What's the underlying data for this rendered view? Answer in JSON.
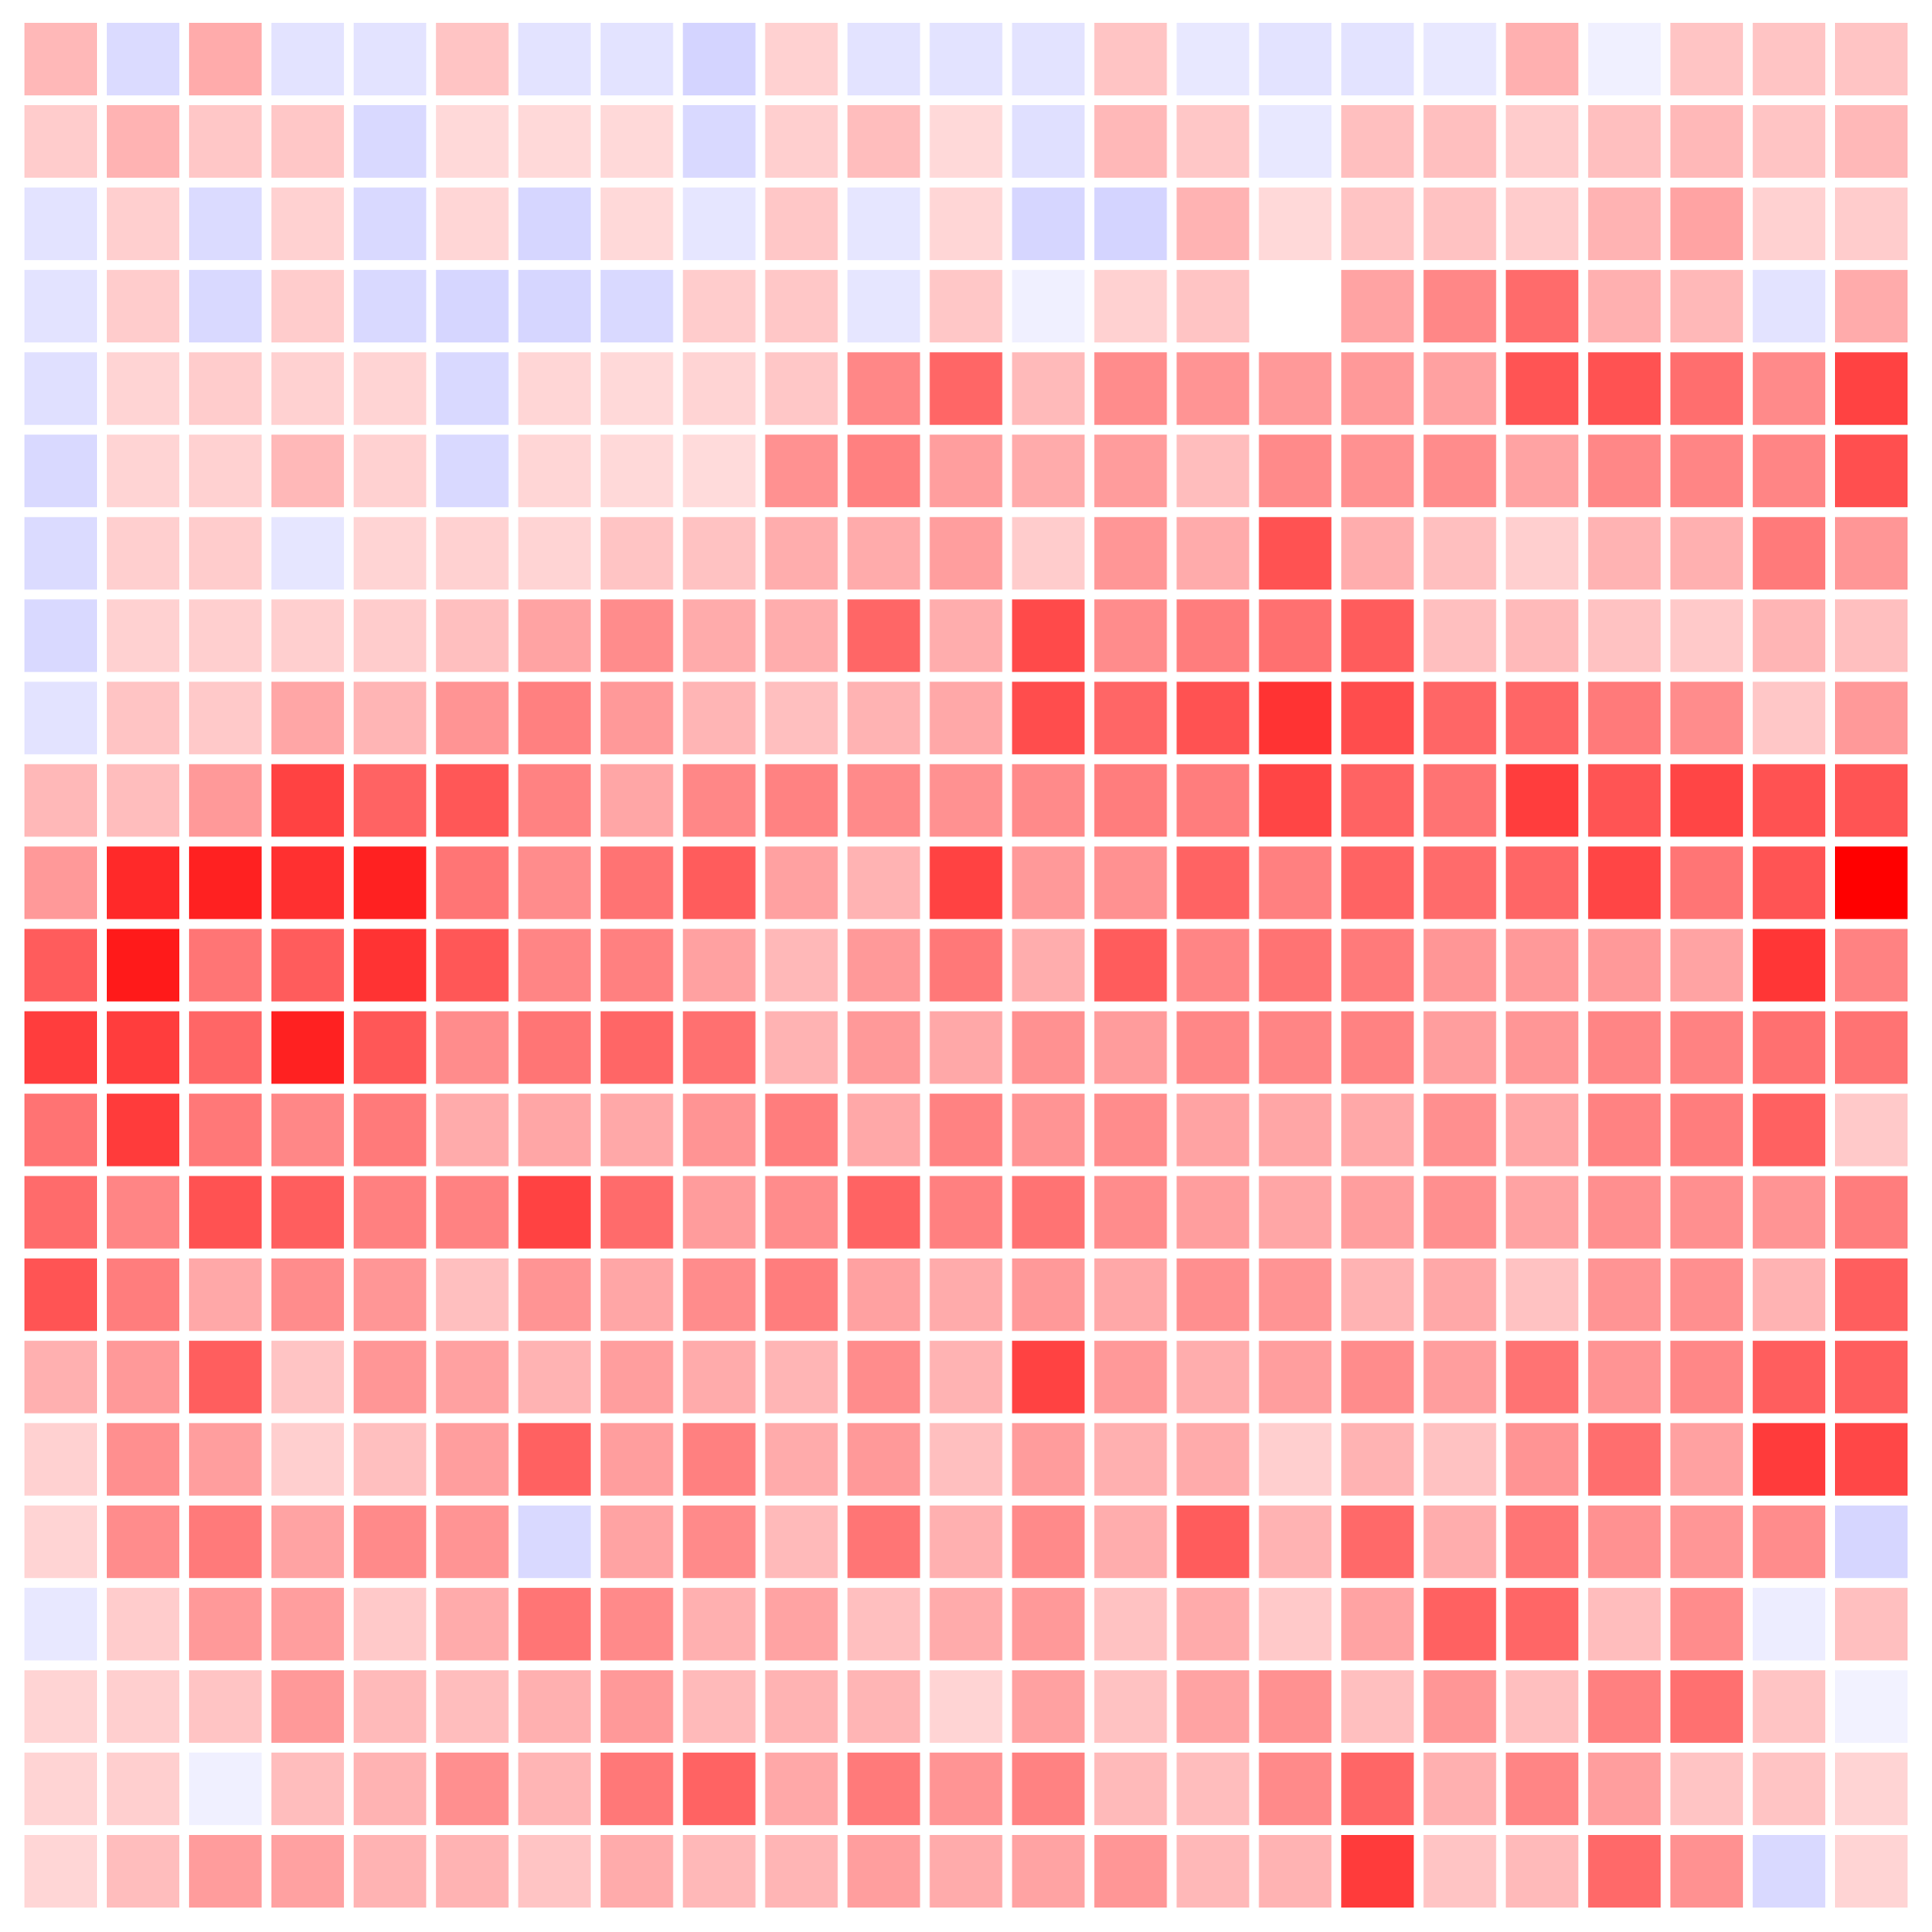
{
  "chart_data": {
    "type": "heatmap",
    "title": "",
    "xlabel": "",
    "ylabel": "",
    "grid": true,
    "legend": "none",
    "colors": {
      "negative": "#0000ff",
      "positive": "#ff0000",
      "neutral": "#ffffff",
      "background": "#ffffff"
    },
    "vmin": -1,
    "vmax": 1,
    "values": [
      [
        0.28,
        -0.14,
        0.33,
        -0.11,
        -0.11,
        0.23,
        -0.11,
        -0.11,
        -0.17,
        0.18,
        -0.11,
        -0.11,
        -0.11,
        0.23,
        -0.09,
        -0.11,
        -0.11,
        -0.09,
        0.31,
        -0.06,
        0.23,
        0.23,
        0.23
      ],
      [
        0.2,
        0.3,
        0.22,
        0.22,
        -0.15,
        0.15,
        0.15,
        0.15,
        -0.15,
        0.19,
        0.26,
        0.15,
        -0.12,
        0.28,
        0.22,
        -0.09,
        0.25,
        0.25,
        0.2,
        0.25,
        0.28,
        0.23,
        0.28
      ],
      [
        -0.11,
        0.19,
        -0.14,
        0.18,
        -0.15,
        0.16,
        -0.16,
        0.15,
        -0.1,
        0.22,
        -0.1,
        0.16,
        -0.16,
        -0.17,
        0.3,
        0.15,
        0.23,
        0.24,
        0.2,
        0.3,
        0.36,
        0.18,
        0.2
      ],
      [
        -0.11,
        0.2,
        -0.15,
        0.2,
        -0.15,
        -0.16,
        -0.16,
        -0.15,
        0.2,
        0.22,
        -0.1,
        0.22,
        -0.06,
        0.18,
        0.23,
        0.0,
        0.36,
        0.47,
        0.58,
        0.31,
        0.28,
        -0.11,
        0.33
      ],
      [
        -0.12,
        0.17,
        0.2,
        0.18,
        0.17,
        -0.15,
        0.16,
        0.15,
        0.17,
        0.22,
        0.47,
        0.6,
        0.27,
        0.45,
        0.42,
        0.4,
        0.4,
        0.37,
        0.67,
        0.68,
        0.57,
        0.46,
        0.74
      ],
      [
        -0.15,
        0.17,
        0.18,
        0.28,
        0.18,
        -0.15,
        0.16,
        0.15,
        0.14,
        0.43,
        0.5,
        0.38,
        0.33,
        0.39,
        0.26,
        0.46,
        0.43,
        0.45,
        0.36,
        0.47,
        0.48,
        0.48,
        0.69
      ],
      [
        -0.14,
        0.19,
        0.2,
        -0.1,
        0.17,
        0.18,
        0.17,
        0.23,
        0.24,
        0.32,
        0.33,
        0.38,
        0.2,
        0.41,
        0.33,
        0.68,
        0.32,
        0.25,
        0.19,
        0.3,
        0.31,
        0.52,
        0.41
      ],
      [
        -0.15,
        0.18,
        0.19,
        0.19,
        0.2,
        0.25,
        0.36,
        0.45,
        0.33,
        0.32,
        0.6,
        0.32,
        0.71,
        0.45,
        0.51,
        0.56,
        0.64,
        0.25,
        0.27,
        0.24,
        0.21,
        0.29,
        0.25
      ],
      [
        -0.11,
        0.23,
        0.21,
        0.35,
        0.29,
        0.42,
        0.5,
        0.4,
        0.29,
        0.25,
        0.3,
        0.34,
        0.7,
        0.6,
        0.68,
        0.8,
        0.7,
        0.6,
        0.6,
        0.52,
        0.45,
        0.22,
        0.4
      ],
      [
        0.28,
        0.26,
        0.4,
        0.74,
        0.61,
        0.66,
        0.49,
        0.35,
        0.47,
        0.49,
        0.46,
        0.43,
        0.46,
        0.51,
        0.51,
        0.73,
        0.61,
        0.55,
        0.76,
        0.67,
        0.73,
        0.68,
        0.67
      ],
      [
        0.4,
        0.84,
        0.87,
        0.81,
        0.87,
        0.54,
        0.45,
        0.55,
        0.64,
        0.37,
        0.3,
        0.74,
        0.4,
        0.43,
        0.61,
        0.5,
        0.61,
        0.58,
        0.6,
        0.73,
        0.54,
        0.67,
        1.0
      ],
      [
        0.64,
        0.9,
        0.54,
        0.64,
        0.8,
        0.66,
        0.48,
        0.5,
        0.37,
        0.28,
        0.4,
        0.53,
        0.32,
        0.64,
        0.48,
        0.55,
        0.52,
        0.41,
        0.4,
        0.4,
        0.36,
        0.79,
        0.49
      ],
      [
        0.76,
        0.76,
        0.6,
        0.87,
        0.66,
        0.45,
        0.54,
        0.6,
        0.56,
        0.3,
        0.4,
        0.34,
        0.43,
        0.39,
        0.47,
        0.48,
        0.49,
        0.38,
        0.41,
        0.48,
        0.49,
        0.56,
        0.55
      ],
      [
        0.55,
        0.77,
        0.53,
        0.47,
        0.52,
        0.33,
        0.35,
        0.34,
        0.42,
        0.51,
        0.34,
        0.49,
        0.42,
        0.45,
        0.36,
        0.35,
        0.34,
        0.44,
        0.35,
        0.49,
        0.51,
        0.62,
        0.21
      ],
      [
        0.58,
        0.48,
        0.68,
        0.63,
        0.5,
        0.49,
        0.74,
        0.58,
        0.39,
        0.45,
        0.61,
        0.5,
        0.55,
        0.45,
        0.38,
        0.35,
        0.38,
        0.44,
        0.36,
        0.44,
        0.44,
        0.42,
        0.51
      ],
      [
        0.67,
        0.51,
        0.34,
        0.45,
        0.41,
        0.25,
        0.42,
        0.35,
        0.45,
        0.51,
        0.37,
        0.33,
        0.4,
        0.34,
        0.44,
        0.42,
        0.3,
        0.34,
        0.24,
        0.42,
        0.44,
        0.3,
        0.63
      ],
      [
        0.31,
        0.4,
        0.63,
        0.23,
        0.41,
        0.37,
        0.3,
        0.38,
        0.33,
        0.29,
        0.45,
        0.3,
        0.74,
        0.4,
        0.32,
        0.38,
        0.45,
        0.38,
        0.55,
        0.42,
        0.47,
        0.63,
        0.63
      ],
      [
        0.18,
        0.44,
        0.38,
        0.19,
        0.25,
        0.38,
        0.62,
        0.38,
        0.5,
        0.33,
        0.4,
        0.25,
        0.39,
        0.31,
        0.33,
        0.19,
        0.3,
        0.24,
        0.42,
        0.57,
        0.37,
        0.77,
        0.72
      ],
      [
        0.17,
        0.45,
        0.52,
        0.36,
        0.46,
        0.42,
        -0.15,
        0.36,
        0.46,
        0.27,
        0.54,
        0.31,
        0.46,
        0.32,
        0.64,
        0.3,
        0.59,
        0.32,
        0.54,
        0.43,
        0.41,
        0.45,
        -0.16
      ],
      [
        -0.09,
        0.2,
        0.4,
        0.38,
        0.21,
        0.33,
        0.54,
        0.46,
        0.31,
        0.36,
        0.25,
        0.33,
        0.4,
        0.24,
        0.33,
        0.21,
        0.36,
        0.62,
        0.6,
        0.26,
        0.45,
        -0.07,
        0.25
      ],
      [
        0.17,
        0.19,
        0.23,
        0.4,
        0.27,
        0.26,
        0.31,
        0.4,
        0.27,
        0.3,
        0.29,
        0.17,
        0.37,
        0.24,
        0.36,
        0.43,
        0.25,
        0.41,
        0.25,
        0.5,
        0.56,
        0.23,
        -0.05
      ],
      [
        0.17,
        0.19,
        -0.06,
        0.26,
        0.3,
        0.44,
        0.29,
        0.53,
        0.61,
        0.34,
        0.52,
        0.42,
        0.49,
        0.27,
        0.26,
        0.46,
        0.6,
        0.31,
        0.48,
        0.38,
        0.23,
        0.23,
        0.17
      ],
      [
        0.16,
        0.26,
        0.39,
        0.37,
        0.3,
        0.3,
        0.23,
        0.33,
        0.28,
        0.29,
        0.38,
        0.33,
        0.36,
        0.41,
        0.28,
        0.3,
        0.77,
        0.23,
        0.27,
        0.59,
        0.43,
        -0.15,
        0.17
      ]
    ]
  }
}
